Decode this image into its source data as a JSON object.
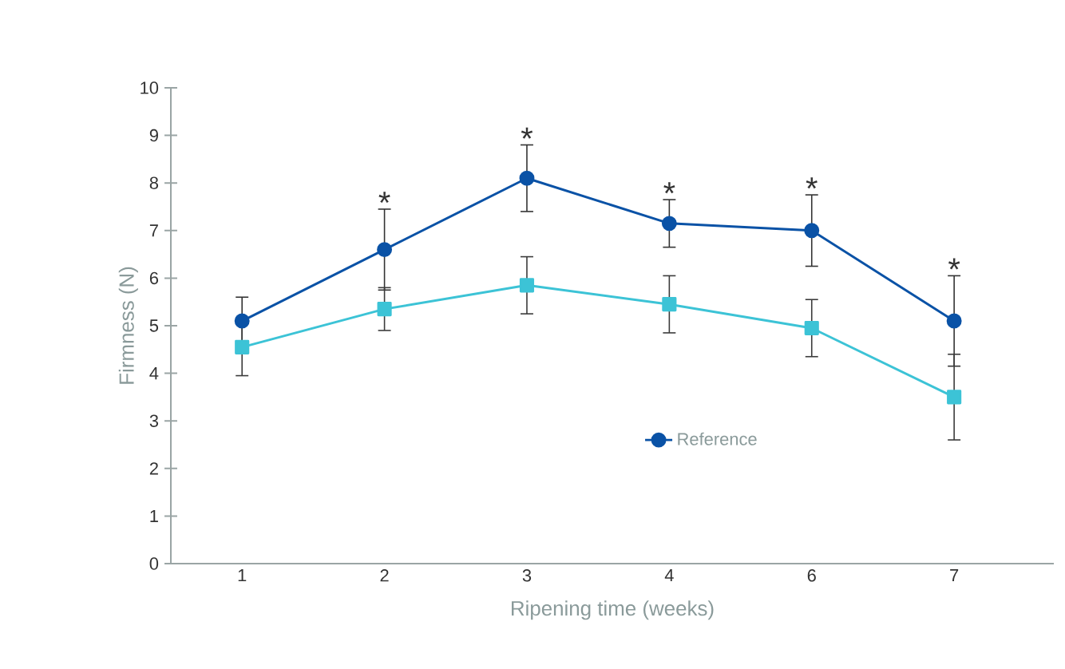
{
  "chart_data": {
    "type": "line",
    "xlabel": "Ripening time (weeks)",
    "ylabel": "Firmness (N)",
    "categories": [
      "1",
      "2",
      "3",
      "4",
      "6",
      "7"
    ],
    "ylim": [
      0,
      10
    ],
    "yticks": [
      0,
      1,
      2,
      3,
      4,
      5,
      6,
      7,
      8,
      9,
      10
    ],
    "series": [
      {
        "name": "Reference",
        "color": "#0a52a6",
        "marker": "circle",
        "values": [
          5.1,
          6.6,
          8.1,
          7.15,
          7.0,
          5.1
        ],
        "errors": [
          0.5,
          0.85,
          0.7,
          0.5,
          0.75,
          0.95
        ]
      },
      {
        "color": "#3cc3d6",
        "marker": "square",
        "values": [
          4.55,
          5.35,
          5.85,
          5.45,
          4.95,
          3.5
        ],
        "errors": [
          0.6,
          0.45,
          0.6,
          0.6,
          0.6,
          0.9
        ]
      }
    ],
    "annotations": [
      {
        "text": "*",
        "x": "2",
        "y": 7.45
      },
      {
        "text": "*",
        "x": "3",
        "y": 8.8
      },
      {
        "text": "*",
        "x": "4",
        "y": 7.65
      },
      {
        "text": "*",
        "x": "6",
        "y": 7.75
      },
      {
        "text": "*",
        "x": "7",
        "y": 6.05
      }
    ],
    "legend": "bottom right",
    "grid": false,
    "line_style": "solid"
  }
}
